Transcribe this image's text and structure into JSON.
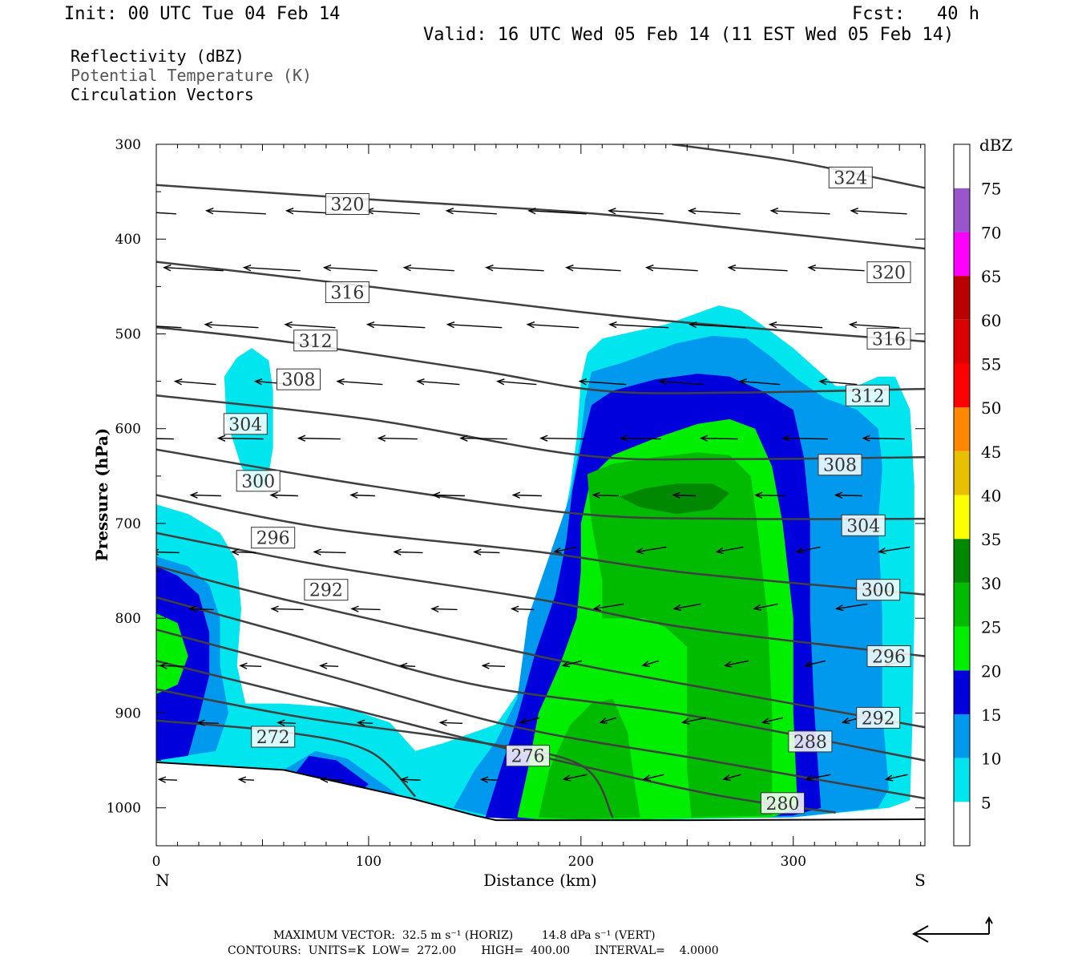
{
  "header": {
    "init": "Init: 00 UTC Tue 04 Feb 14",
    "fcst": "Fcst:   40 h",
    "valid": "Valid: 16 UTC Wed 05 Feb 14 (11 EST Wed 05 Feb 14)",
    "field1": "Reflectivity (dBZ)",
    "field2": "Potential Temperature (K)",
    "field3": "Circulation Vectors"
  },
  "footer": {
    "line1": "MAXIMUM VECTOR:  32.5 m s⁻¹ (HORIZ)        14.8 dPa s⁻¹ (VERT)",
    "line2": "CONTOURS:  UNITS=K  LOW=  272.00       HIGH=  400.00       INTERVAL=    4.0000"
  },
  "colors": {
    "dbz": [
      "#ffffff",
      "#00e5ee",
      "#0099ee",
      "#0000dd",
      "#00ee00",
      "#00bb00",
      "#008800",
      "#ffff00",
      "#e8c000",
      "#ff8800",
      "#ff0000",
      "#dd0000",
      "#bb0000",
      "#ff00ff",
      "#9955cc",
      "#ffffff"
    ],
    "contour": "#404040"
  },
  "chart_data": {
    "type": "heatmap",
    "xlabel": "Distance (km)",
    "ylabel": "Pressure (hPa)",
    "xlim": [
      0,
      362
    ],
    "ylim": [
      1040,
      300
    ],
    "x_ticks": [
      0,
      100,
      200,
      300
    ],
    "y_ticks": [
      300,
      400,
      500,
      600,
      700,
      800,
      900,
      1000
    ],
    "x_end_labels": {
      "left": "N",
      "right": "S"
    },
    "colorbar": {
      "unit": "dBZ",
      "levels": [
        5,
        10,
        15,
        20,
        25,
        30,
        35,
        40,
        45,
        50,
        55,
        60,
        65,
        70,
        75
      ]
    },
    "reflectivity_regions": [
      {
        "dbz": 5,
        "polys": [
          [
            [
              0,
              680
            ],
            [
              15,
              690
            ],
            [
              30,
              710
            ],
            [
              38,
              740
            ],
            [
              40,
              790
            ],
            [
              38,
              850
            ],
            [
              42,
              890
            ],
            [
              60,
              890
            ],
            [
              90,
              895
            ],
            [
              110,
              910
            ],
            [
              122,
              940
            ],
            [
              135,
              932
            ],
            [
              150,
              920
            ],
            [
              160,
              912
            ],
            [
              170,
              880
            ],
            [
              180,
              790
            ],
            [
              190,
              720
            ],
            [
              195,
              660
            ],
            [
              198,
              610
            ],
            [
              200,
              550
            ],
            [
              203,
              520
            ],
            [
              210,
              505
            ],
            [
              240,
              490
            ],
            [
              255,
              478
            ],
            [
              265,
              470
            ],
            [
              275,
              475
            ],
            [
              285,
              490
            ],
            [
              300,
              515
            ],
            [
              310,
              535
            ],
            [
              320,
              555
            ],
            [
              330,
              555
            ],
            [
              340,
              545
            ],
            [
              348,
              545
            ],
            [
              355,
              580
            ],
            [
              357,
              660
            ],
            [
              357,
              800
            ],
            [
              356,
              920
            ],
            [
              355,
              992
            ],
            [
              345,
              1000
            ],
            [
              300,
              1010
            ],
            [
              220,
              1013
            ],
            [
              155,
              1010
            ],
            [
              100,
              995
            ],
            [
              0,
              952
            ]
          ],
          [
            [
              32,
              545
            ],
            [
              38,
              525
            ],
            [
              45,
              515
            ],
            [
              53,
              528
            ],
            [
              55,
              560
            ],
            [
              55,
              620
            ],
            [
              52,
              660
            ],
            [
              46,
              665
            ],
            [
              40,
              640
            ],
            [
              33,
              590
            ]
          ]
        ]
      },
      {
        "dbz": 10,
        "polys": [
          [
            [
              0,
              735
            ],
            [
              15,
              745
            ],
            [
              25,
              765
            ],
            [
              30,
              800
            ],
            [
              30,
              850
            ],
            [
              34,
              900
            ],
            [
              28,
              940
            ],
            [
              0,
              950
            ]
          ],
          [
            [
              140,
              1000
            ],
            [
              150,
              960
            ],
            [
              160,
              930
            ],
            [
              170,
              885
            ],
            [
              175,
              800
            ],
            [
              185,
              735
            ],
            [
              195,
              670
            ],
            [
              200,
              610
            ],
            [
              202,
              570
            ],
            [
              205,
              540
            ],
            [
              220,
              530
            ],
            [
              245,
              510
            ],
            [
              262,
              502
            ],
            [
              278,
              505
            ],
            [
              290,
              525
            ],
            [
              302,
              548
            ],
            [
              315,
              568
            ],
            [
              330,
              580
            ],
            [
              340,
              600
            ],
            [
              342,
              640
            ],
            [
              340,
              700
            ],
            [
              342,
              800
            ],
            [
              342,
              900
            ],
            [
              345,
              980
            ],
            [
              340,
              1000
            ],
            [
              300,
              1010
            ],
            [
              220,
              1012
            ],
            [
              160,
              1010
            ]
          ],
          [
            [
              60,
              960
            ],
            [
              75,
              940
            ],
            [
              90,
              948
            ],
            [
              110,
              980
            ],
            [
              120,
              996
            ],
            [
              90,
              990
            ]
          ]
        ]
      },
      {
        "dbz": 15,
        "polys": [
          [
            [
              0,
              745
            ],
            [
              10,
              755
            ],
            [
              20,
              775
            ],
            [
              25,
              815
            ],
            [
              25,
              860
            ],
            [
              20,
              905
            ],
            [
              15,
              945
            ],
            [
              0,
              950
            ]
          ],
          [
            [
              155,
              1010
            ],
            [
              162,
              960
            ],
            [
              170,
              905
            ],
            [
              178,
              840
            ],
            [
              188,
              775
            ],
            [
              193,
              720
            ],
            [
              196,
              665
            ],
            [
              200,
              620
            ],
            [
              205,
              575
            ],
            [
              215,
              560
            ],
            [
              235,
              548
            ],
            [
              255,
              542
            ],
            [
              270,
              545
            ],
            [
              285,
              560
            ],
            [
              300,
              580
            ],
            [
              305,
              630
            ],
            [
              308,
              700
            ],
            [
              308,
              800
            ],
            [
              310,
              900
            ],
            [
              313,
              1000
            ],
            [
              300,
              1008
            ],
            [
              230,
              1012
            ],
            [
              170,
              1012
            ]
          ],
          [
            [
              65,
              965
            ],
            [
              72,
              945
            ],
            [
              85,
              950
            ],
            [
              100,
              975
            ],
            [
              95,
              985
            ],
            [
              75,
              982
            ]
          ]
        ]
      },
      {
        "dbz": 20,
        "polys": [
          [
            [
              0,
              795
            ],
            [
              10,
              805
            ],
            [
              15,
              840
            ],
            [
              10,
              870
            ],
            [
              0,
              880
            ]
          ],
          [
            [
              170,
              1010
            ],
            [
              175,
              960
            ],
            [
              180,
              900
            ],
            [
              190,
              850
            ],
            [
              198,
              800
            ],
            [
              200,
              750
            ],
            [
              200,
              700
            ],
            [
              205,
              650
            ],
            [
              215,
              628
            ],
            [
              235,
              610
            ],
            [
              255,
              595
            ],
            [
              270,
              590
            ],
            [
              282,
              600
            ],
            [
              290,
              640
            ],
            [
              295,
              700
            ],
            [
              300,
              800
            ],
            [
              300,
              900
            ],
            [
              302,
              1000
            ],
            [
              290,
              1010
            ],
            [
              230,
              1012
            ],
            [
              180,
              1012
            ]
          ]
        ]
      },
      {
        "dbz": 25,
        "polys": [
          [
            [
              203,
              648
            ],
            [
              215,
              637
            ],
            [
              235,
              630
            ],
            [
              255,
              625
            ],
            [
              270,
              628
            ],
            [
              280,
              650
            ],
            [
              283,
              700
            ],
            [
              288,
              800
            ],
            [
              290,
              900
            ],
            [
              290,
              1008
            ],
            [
              252,
              1010
            ],
            [
              250,
              960
            ],
            [
              250,
              880
            ],
            [
              250,
              830
            ],
            [
              240,
              810
            ],
            [
              230,
              800
            ],
            [
              210,
              800
            ],
            [
              210,
              760
            ],
            [
              205,
              700
            ]
          ],
          [
            [
              180,
              1010
            ],
            [
              185,
              960
            ],
            [
              195,
              912
            ],
            [
              205,
              890
            ],
            [
              215,
              885
            ],
            [
              222,
              920
            ],
            [
              225,
              970
            ],
            [
              228,
              1010
            ],
            [
              200,
              1012
            ]
          ]
        ]
      },
      {
        "dbz": 30,
        "polys": [
          [
            [
              218,
              672
            ],
            [
              230,
              663
            ],
            [
              245,
              658
            ],
            [
              262,
              658
            ],
            [
              270,
              668
            ],
            [
              262,
              685
            ],
            [
              245,
              690
            ],
            [
              228,
              683
            ]
          ]
        ]
      }
    ],
    "theta_contours": [
      {
        "k": 272,
        "label_xy": [
          55,
          925
        ]
      },
      {
        "k": 276,
        "label_xy": [
          175,
          945
        ]
      },
      {
        "k": 280,
        "label_xy": [
          295,
          995
        ]
      },
      {
        "k": 288,
        "label_xy": [
          308,
          930
        ]
      },
      {
        "k": 292,
        "label_xy": [
          80,
          770
        ],
        "label2_xy": [
          340,
          905
        ]
      },
      {
        "k": 296,
        "label_xy": [
          55,
          715
        ],
        "label2_xy": [
          345,
          840
        ]
      },
      {
        "k": 300,
        "label_xy": [
          48,
          655
        ],
        "label2_xy": [
          340,
          770
        ]
      },
      {
        "k": 304,
        "label_xy": [
          42,
          595
        ],
        "label2_xy": [
          333,
          702
        ]
      },
      {
        "k": 308,
        "label_xy": [
          67,
          548
        ],
        "label2_xy": [
          322,
          638
        ]
      },
      {
        "k": 312,
        "label_xy": [
          75,
          507
        ],
        "label2_xy": [
          335,
          565
        ]
      },
      {
        "k": 316,
        "label_xy": [
          90,
          456
        ],
        "label2_xy": [
          345,
          505
        ]
      },
      {
        "k": 320,
        "label_xy": [
          90,
          363
        ],
        "label2_xy": [
          345,
          435
        ]
      },
      {
        "k": 324,
        "label_xy": [
          327,
          335
        ]
      }
    ],
    "max_vector": {
      "horiz_m_s": 32.5,
      "vert_dPa_s": 14.8
    },
    "contour_units": "K",
    "contour_low": 272.0,
    "contour_high": 400.0,
    "contour_interval": 4.0
  }
}
